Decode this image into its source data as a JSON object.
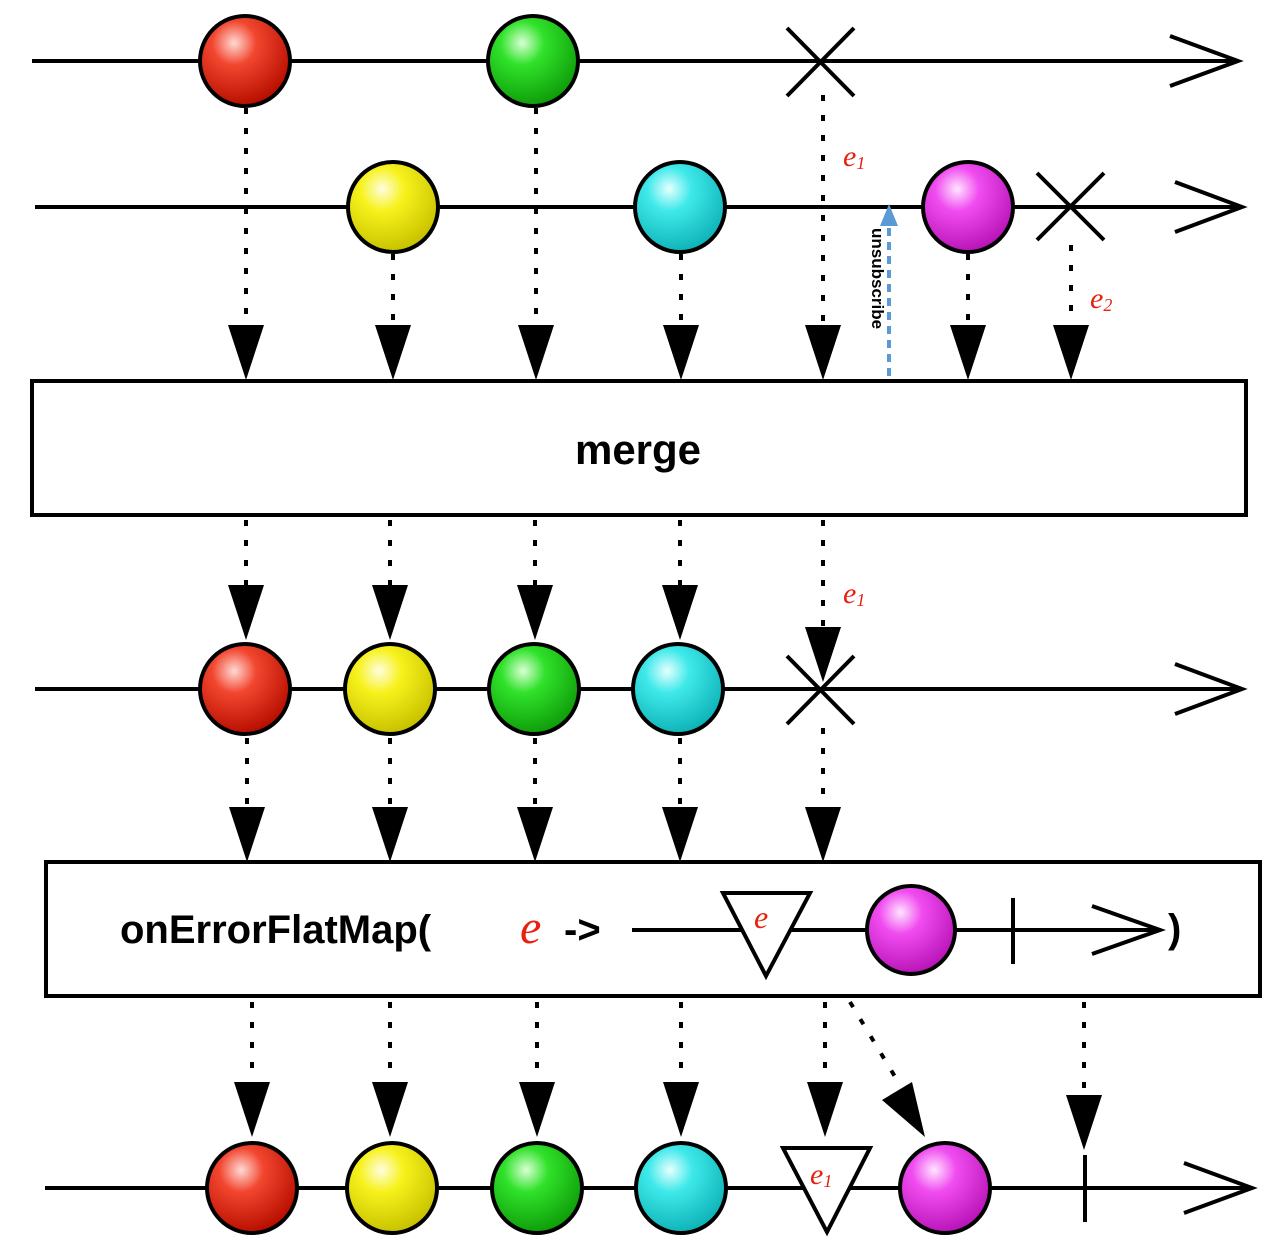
{
  "operators": {
    "merge": "merge",
    "on_error_flat_map_prefix": "onErrorFlatMap(",
    "lambda_param": "e",
    "lambda_arrow": "->",
    "close_paren": ")"
  },
  "labels": {
    "unsubscribe": "unsubscribe",
    "error_1": "e",
    "error_1_sub": "1",
    "error_2": "e",
    "error_2_sub": "2",
    "triangle_param": "e"
  },
  "colors": {
    "red": "#e8210f",
    "green": "#1ed51e",
    "yellow": "#f5f00f",
    "cyan": "#2fe6e6",
    "magenta": "#ee3cee",
    "unsubscribe_arrow": "#5b9bd5",
    "error_text": "#e8210f"
  },
  "streams": {
    "source_1": [
      "red",
      "green",
      "error"
    ],
    "source_2": [
      "yellow",
      "cyan",
      "magenta",
      "error"
    ],
    "merged": [
      "red",
      "yellow",
      "green",
      "cyan",
      "error"
    ],
    "output": [
      "red",
      "yellow",
      "green",
      "cyan",
      "triangle e1",
      "magenta",
      "complete"
    ]
  }
}
